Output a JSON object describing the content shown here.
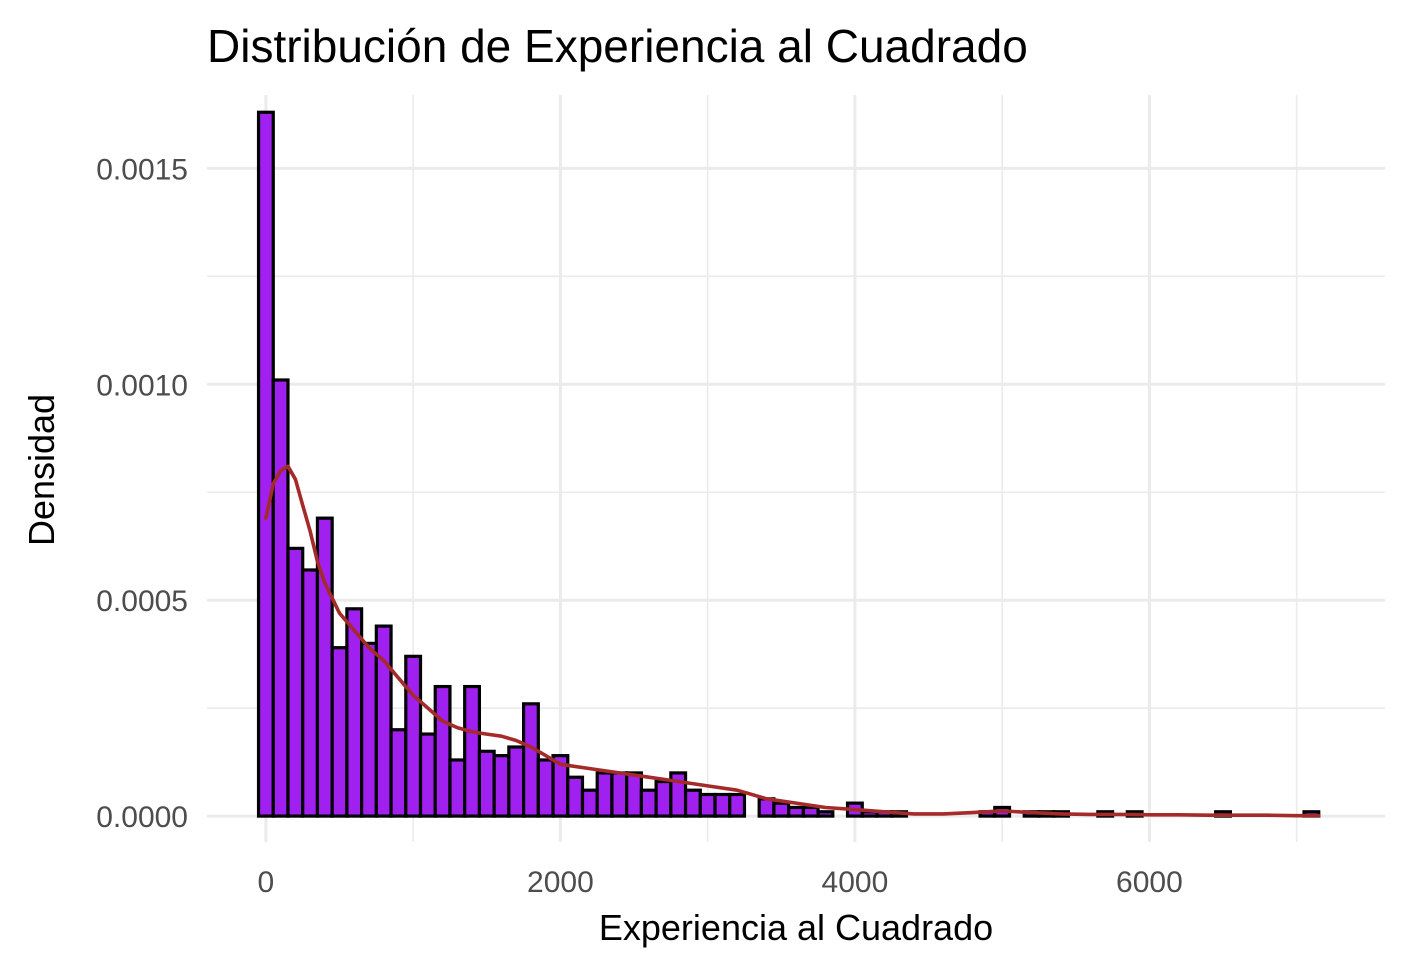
{
  "chart_data": {
    "type": "bar",
    "title": "Distribución de Experiencia al Cuadrado",
    "xlabel": "Experiencia al Cuadrado",
    "ylabel": "Densidad",
    "xlim": [
      -400,
      7600
    ],
    "ylim": [
      -6e-05,
      0.00167
    ],
    "x_ticks": [
      0,
      2000,
      4000,
      6000
    ],
    "x_tick_labels": [
      "0",
      "2000",
      "4000",
      "6000"
    ],
    "y_ticks": [
      0,
      0.0005,
      0.001,
      0.0015
    ],
    "y_tick_labels": [
      "0.0000",
      "0.0005",
      "0.0010",
      "0.0015"
    ],
    "grid": true,
    "legend": "none",
    "colors": {
      "bar_fill": "#A020F0",
      "bar_stroke": "#000000",
      "density_line": "#A52A2A",
      "grid": "#EBEBEB"
    },
    "histogram": {
      "bin_width": 100,
      "bin_starts": [
        -50,
        50,
        150,
        250,
        350,
        450,
        550,
        650,
        750,
        850,
        950,
        1050,
        1150,
        1250,
        1350,
        1450,
        1550,
        1650,
        1750,
        1850,
        1950,
        2050,
        2150,
        2250,
        2350,
        2450,
        2550,
        2650,
        2750,
        2850,
        2950,
        3050,
        3150,
        3250,
        3350,
        3450,
        3550,
        3650,
        3750,
        3850,
        3950,
        4050,
        4150,
        4250,
        4350,
        4450,
        4550,
        4650,
        4750,
        4850,
        4950,
        5050,
        5150,
        5250,
        5350,
        5450,
        5550,
        5650,
        5750,
        5850,
        5950,
        6050,
        6150,
        6250,
        6350,
        6450,
        6550,
        6650,
        6750,
        6850,
        6950,
        7050
      ],
      "density": [
        0.00163,
        0.00101,
        0.00062,
        0.00057,
        0.00069,
        0.00039,
        0.00048,
        0.0004,
        0.00044,
        0.0002,
        0.00037,
        0.00019,
        0.0003,
        0.00013,
        0.0003,
        0.00015,
        0.00014,
        0.00016,
        0.00026,
        0.00013,
        0.00014,
        9e-05,
        6e-05,
        0.0001,
        0.0001,
        0.0001,
        6e-05,
        8e-05,
        0.0001,
        6e-05,
        5e-05,
        5e-05,
        5e-05,
        0.0,
        4e-05,
        3e-05,
        2e-05,
        2e-05,
        1e-05,
        0.0,
        3e-05,
        1e-05,
        1e-05,
        1e-05,
        0.0,
        0.0,
        0.0,
        0.0,
        0.0,
        1e-05,
        2e-05,
        0.0,
        1e-05,
        1e-05,
        1e-05,
        0.0,
        0.0,
        1e-05,
        0.0,
        1e-05,
        0.0,
        0.0,
        0.0,
        0.0,
        0.0,
        1e-05,
        0.0,
        0.0,
        0.0,
        0.0,
        0.0,
        1e-05
      ]
    },
    "density_curve": {
      "name": "",
      "x": [
        0,
        50,
        100,
        150,
        200,
        250,
        300,
        350,
        400,
        500,
        600,
        700,
        800,
        900,
        1000,
        1100,
        1200,
        1300,
        1400,
        1500,
        1600,
        1700,
        1800,
        1900,
        2000,
        2200,
        2400,
        2600,
        2800,
        3000,
        3200,
        3400,
        3600,
        3800,
        4000,
        4200,
        4400,
        4600,
        4800,
        5000,
        5200,
        5400,
        5600,
        5800,
        6000,
        6200,
        6400,
        6600,
        6800,
        7000,
        7150
      ],
      "y": [
        0.00069,
        0.00077,
        0.0008,
        0.00081,
        0.00078,
        0.00072,
        0.00066,
        0.00059,
        0.00054,
        0.00047,
        0.00043,
        0.00039,
        0.00036,
        0.00032,
        0.00028,
        0.00025,
        0.00022,
        0.000205,
        0.000195,
        0.00019,
        0.000185,
        0.000175,
        0.00016,
        0.00014,
        0.00012,
        0.00011,
        0.0001,
        9e-05,
        8e-05,
        7e-05,
        6e-05,
        4e-05,
        3e-05,
        2e-05,
        1.5e-05,
        1e-05,
        5e-06,
        5e-06,
        8e-06,
        1.2e-05,
        8e-06,
        5e-06,
        4e-06,
        4e-06,
        3e-06,
        3e-06,
        2e-06,
        2e-06,
        2e-06,
        1e-06,
        1e-06
      ]
    }
  }
}
